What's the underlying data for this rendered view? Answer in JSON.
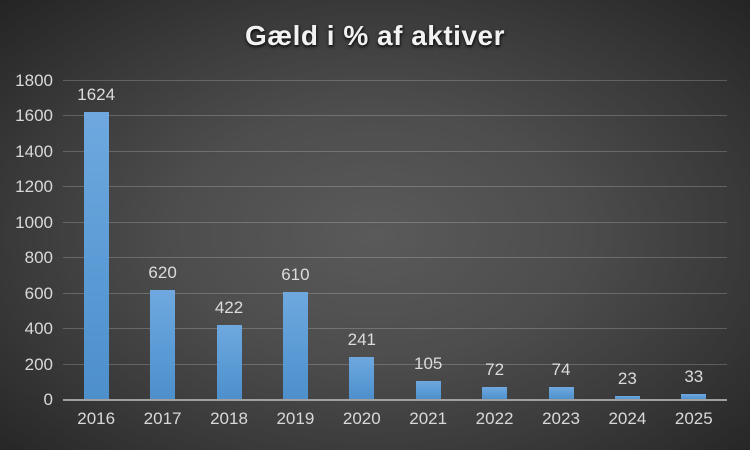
{
  "chart_data": {
    "type": "bar",
    "title": "Gæld i % af aktiver",
    "categories": [
      "2016",
      "2017",
      "2018",
      "2019",
      "2020",
      "2021",
      "2022",
      "2023",
      "2024",
      "2025"
    ],
    "values": [
      1624,
      620,
      422,
      610,
      241,
      105,
      72,
      74,
      23,
      33
    ],
    "xlabel": "",
    "ylabel": "",
    "ylim": [
      0,
      1800
    ],
    "ytick_step": 200,
    "yticks": [
      0,
      200,
      400,
      600,
      800,
      1000,
      1200,
      1400,
      1600,
      1800
    ],
    "grid": true,
    "legend": false,
    "data_labels": true,
    "colors": {
      "bar": "#5B9BD5",
      "bar_light": "#6FA8DF",
      "bar_dark": "#4D8FCB",
      "axis_line": "#A0A0A0",
      "gridline": "rgba(255,255,255,0.20)",
      "tick_label": "#D9D9D9",
      "data_label": "#DCDCDC",
      "title": "#F2F2F2",
      "bg_center": "#5A5A5A",
      "bg_edge": "#242424"
    }
  }
}
